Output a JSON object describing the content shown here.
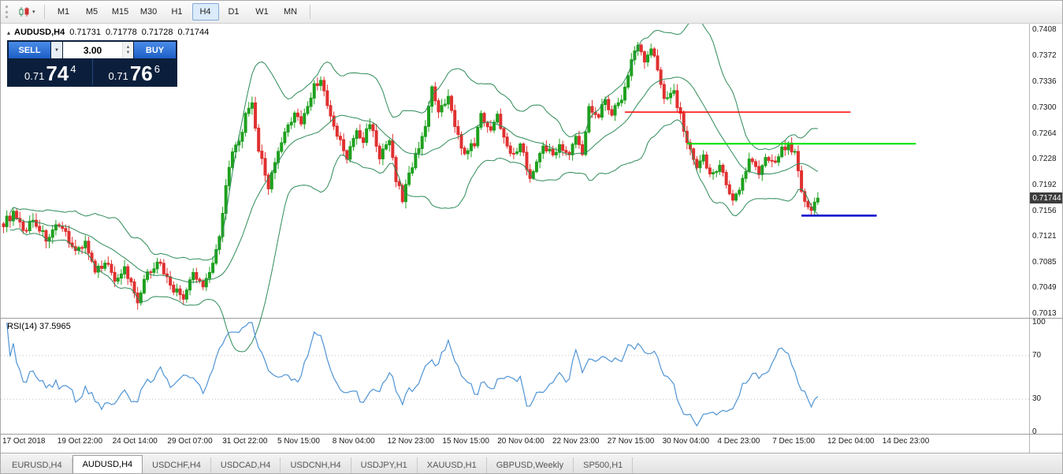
{
  "toolbar": {
    "timeframes": [
      "M1",
      "M5",
      "M15",
      "M30",
      "H1",
      "H4",
      "D1",
      "W1",
      "MN"
    ],
    "active_timeframe": "H4",
    "chart_type_icon": "candlestick-chart-icon"
  },
  "chart": {
    "title": {
      "symbol": "AUDUSD,H4",
      "open": "0.71731",
      "high": "0.71778",
      "low": "0.71728",
      "close": "0.71744"
    },
    "trade_panel": {
      "sell_label": "SELL",
      "buy_label": "BUY",
      "lot_value": "3.00",
      "sell_price": {
        "prefix": "0.71",
        "big": "74",
        "sup": "4"
      },
      "buy_price": {
        "prefix": "0.71",
        "big": "76",
        "sup": "6"
      }
    },
    "current_price_label": "0.71744"
  },
  "rsi_panel": {
    "label": "RSI(14) 37.5965"
  },
  "tabs": [
    "EURUSD,H4",
    "AUDUSD,H4",
    "USDCHF,H4",
    "USDCAD,H4",
    "USDCNH,H4",
    "USDJPY,H1",
    "XAUUSD,H1",
    "GBPUSD,Weekly",
    "SP500,H1"
  ],
  "active_tab": "AUDUSD,H4",
  "chart_data": [
    {
      "type": "candlestick",
      "symbol": "AUDUSD",
      "timeframe": "H4",
      "current_ohlc": {
        "open": 0.71731,
        "high": 0.71778,
        "low": 0.71728,
        "close": 0.71744
      },
      "last_price": 0.71744,
      "visible_price_range": [
        0.701,
        0.7416
      ],
      "price_axis_ticks": [
        0.7408,
        0.7372,
        0.7336,
        0.73,
        0.7264,
        0.7228,
        0.7192,
        0.7156,
        0.7121,
        0.7085,
        0.7049,
        0.7013
      ],
      "time_axis_ticks": [
        "17 Oct 2018",
        "19 Oct 22:00",
        "24 Oct 14:00",
        "29 Oct 07:00",
        "31 Oct 22:00",
        "5 Nov 15:00",
        "8 Nov 04:00",
        "12 Nov 23:00",
        "15 Nov 15:00",
        "20 Nov 04:00",
        "22 Nov 23:00",
        "27 Nov 15:00",
        "30 Nov 04:00",
        "4 Dec 23:00",
        "7 Dec 15:00",
        "12 Dec 04:00",
        "14 Dec 23:00"
      ],
      "candle_count": 250,
      "close_waypoints": [
        [
          0,
          0.714
        ],
        [
          3,
          0.7152
        ],
        [
          6,
          0.7128
        ],
        [
          9,
          0.7145
        ],
        [
          13,
          0.7118
        ],
        [
          16,
          0.7132
        ],
        [
          19,
          0.7126
        ],
        [
          22,
          0.71
        ],
        [
          25,
          0.7114
        ],
        [
          28,
          0.7068
        ],
        [
          31,
          0.7088
        ],
        [
          34,
          0.7062
        ],
        [
          37,
          0.7076
        ],
        [
          40,
          0.7042
        ],
        [
          41,
          0.7025
        ],
        [
          43,
          0.706
        ],
        [
          47,
          0.7088
        ],
        [
          50,
          0.7064
        ],
        [
          52,
          0.7048
        ],
        [
          55,
          0.7036
        ],
        [
          58,
          0.7068
        ],
        [
          61,
          0.7052
        ],
        [
          64,
          0.7086
        ],
        [
          66,
          0.712
        ],
        [
          68,
          0.7196
        ],
        [
          70,
          0.7236
        ],
        [
          72,
          0.7252
        ],
        [
          74,
          0.7288
        ],
        [
          76,
          0.7302
        ],
        [
          78,
          0.7242
        ],
        [
          81,
          0.7192
        ],
        [
          83,
          0.722
        ],
        [
          85,
          0.7252
        ],
        [
          87,
          0.7272
        ],
        [
          89,
          0.7296
        ],
        [
          91,
          0.7278
        ],
        [
          93,
          0.7302
        ],
        [
          95,
          0.7332
        ],
        [
          97,
          0.7338
        ],
        [
          99,
          0.7302
        ],
        [
          101,
          0.7272
        ],
        [
          103,
          0.7252
        ],
        [
          105,
          0.723
        ],
        [
          108,
          0.7268
        ],
        [
          110,
          0.7252
        ],
        [
          112,
          0.7282
        ],
        [
          115,
          0.7232
        ],
        [
          118,
          0.7252
        ],
        [
          120,
          0.7202
        ],
        [
          122,
          0.7172
        ],
        [
          124,
          0.721
        ],
        [
          126,
          0.7232
        ],
        [
          129,
          0.7278
        ],
        [
          131,
          0.7324
        ],
        [
          133,
          0.7292
        ],
        [
          136,
          0.7312
        ],
        [
          139,
          0.7262
        ],
        [
          141,
          0.7232
        ],
        [
          144,
          0.7252
        ],
        [
          146,
          0.7288
        ],
        [
          149,
          0.7272
        ],
        [
          151,
          0.7288
        ],
        [
          153,
          0.7262
        ],
        [
          156,
          0.7232
        ],
        [
          158,
          0.7252
        ],
        [
          161,
          0.7202
        ],
        [
          163,
          0.7222
        ],
        [
          165,
          0.7252
        ],
        [
          168,
          0.7232
        ],
        [
          170,
          0.7252
        ],
        [
          173,
          0.7232
        ],
        [
          175,
          0.7262
        ],
        [
          177,
          0.7232
        ],
        [
          179,
          0.7302
        ],
        [
          182,
          0.7292
        ],
        [
          184,
          0.7312
        ],
        [
          186,
          0.7292
        ],
        [
          188,
          0.7306
        ],
        [
          190,
          0.7326
        ],
        [
          192,
          0.7368
        ],
        [
          194,
          0.7391
        ],
        [
          196,
          0.7362
        ],
        [
          198,
          0.7383
        ],
        [
          200,
          0.7352
        ],
        [
          202,
          0.7318
        ],
        [
          205,
          0.7322
        ],
        [
          207,
          0.7288
        ],
        [
          209,
          0.7252
        ],
        [
          212,
          0.7212
        ],
        [
          214,
          0.7232
        ],
        [
          216,
          0.7206
        ],
        [
          219,
          0.7222
        ],
        [
          221,
          0.7192
        ],
        [
          223,
          0.7172
        ],
        [
          226,
          0.72
        ],
        [
          228,
          0.7232
        ],
        [
          231,
          0.7212
        ],
        [
          233,
          0.7232
        ],
        [
          235,
          0.7222
        ],
        [
          238,
          0.7242
        ],
        [
          240,
          0.7252
        ],
        [
          242,
          0.7236
        ],
        [
          244,
          0.7186
        ],
        [
          246,
          0.7158
        ],
        [
          248,
          0.7166
        ],
        [
          249,
          0.71744
        ]
      ],
      "up_color": "#1fa11f",
      "down_color": "#e03030",
      "bollinger": {
        "period": 20,
        "deviation": 2,
        "color": "#2e8b57"
      },
      "drawn_lines": [
        {
          "name": "resistance-line-red",
          "price": 0.7294,
          "from_index": 190,
          "to_index": 259,
          "color": "#ff0000",
          "width": 1.5
        },
        {
          "name": "resistance-line-green",
          "price": 0.725,
          "from_index": 209,
          "to_index": 279,
          "color": "#00e000",
          "width": 2
        },
        {
          "name": "support-line-blue",
          "price": 0.715,
          "from_index": 244,
          "to_index": 267,
          "color": "#0000cc",
          "width": 2.5
        }
      ]
    },
    {
      "type": "line",
      "name": "RSI",
      "period": 14,
      "current_value": 37.5965,
      "range": [
        0,
        100
      ],
      "levels": [
        100,
        70,
        30,
        0
      ],
      "dotted_levels": [
        70,
        30
      ],
      "color": "#4f94d4"
    }
  ]
}
